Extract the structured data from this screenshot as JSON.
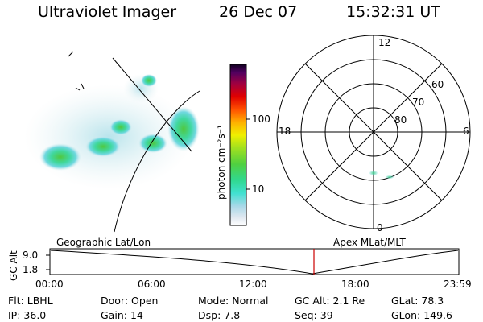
{
  "header": {
    "instrument": "Ultraviolet Imager",
    "date": "26 Dec 07",
    "time": "15:32:31 UT"
  },
  "colorbar": {
    "unit_label": "photon cm⁻²s⁻¹",
    "ticks": [
      "100",
      "10"
    ],
    "log_scale": true
  },
  "polar_plot": {
    "mlt_labels": [
      "12",
      "18",
      "6",
      "0"
    ],
    "lat_labels": [
      "60",
      "70",
      "80"
    ]
  },
  "timeline": {
    "left_label": "Geographic Lat/Lon",
    "right_label": "Apex MLat/MLT",
    "axis_label": "GC Alt",
    "y_ticks": [
      "9.0",
      "1.8"
    ],
    "x_ticks": [
      "00:00",
      "06:00",
      "12:00",
      "18:00",
      "23:59"
    ],
    "current_time_marker": "15:32:31",
    "marker_color": "#cc0000"
  },
  "status": {
    "row1": [
      {
        "label": "Flt:",
        "value": "LBHL"
      },
      {
        "label": "Door:",
        "value": "Open"
      },
      {
        "label": "Mode:",
        "value": "Normal"
      },
      {
        "label": "GC Alt:",
        "value": "2.1 Re"
      },
      {
        "label": "GLat:",
        "value": "78.3"
      }
    ],
    "row2": [
      {
        "label": "IP:",
        "value": "36.0"
      },
      {
        "label": "Gain:",
        "value": "14"
      },
      {
        "label": "Dsp:",
        "value": "7.8"
      },
      {
        "label": "Seq:",
        "value": "39"
      },
      {
        "label": "GLon:",
        "value": "149.6"
      }
    ]
  }
}
